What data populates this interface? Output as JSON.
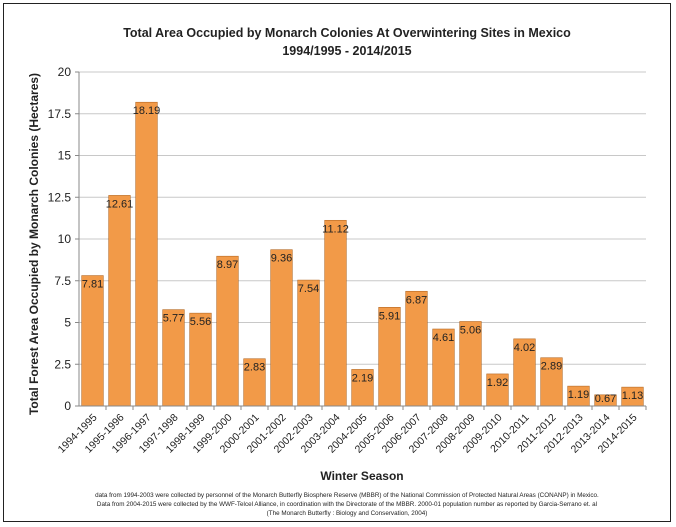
{
  "chart_data": {
    "type": "bar",
    "title": "Total Area Occupied by Monarch  Colonies At Overwintering Sites in Mexico",
    "subtitle": "1994/1995 - 2014/2015",
    "xlabel": "Winter Season",
    "ylabel": "Total Forest Area Occupied by Monarch Colonies (Hectares)",
    "ylim": [
      0,
      20
    ],
    "yticks": [
      "0",
      "2.5",
      "5",
      "7.5",
      "10",
      "12.5",
      "15",
      "17.5",
      "20"
    ],
    "grid": true,
    "bar_color": "#F29A48",
    "categories": [
      "1994-1995",
      "1995-1996",
      "1996-1997",
      "1997-1998",
      "1998-1999",
      "1999-2000",
      "2000-2001",
      "2001-2002",
      "2002-2003",
      "2003-2004",
      "2004-2005",
      "2005-2006",
      "2006-2007",
      "2007-2008",
      "2008-2009",
      "2009-2010",
      "2010-2011",
      "2011-2012",
      "2012-2013",
      "2013-2014",
      "2014-2015"
    ],
    "values": [
      7.81,
      12.61,
      18.19,
      5.77,
      5.56,
      8.97,
      2.83,
      9.36,
      7.54,
      11.12,
      2.19,
      5.91,
      6.87,
      4.61,
      5.06,
      1.92,
      4.02,
      2.89,
      1.19,
      0.67,
      1.13
    ],
    "data_labels": [
      "7.81",
      "12.61",
      "18.19",
      "5.77",
      "5.56",
      "8.97",
      "2.83",
      "9.36",
      "7.54",
      "11.12",
      "2.19",
      "5.91",
      "6.87",
      "4.61",
      "5.06",
      "1.92",
      "4.02",
      "2.89",
      "1.19",
      "0.67",
      "1.13"
    ]
  },
  "notes": [
    "data from 1994-2003 were collected by personnel of the Monarch Butterfly Biosphere Reserve (MBBR) of the National Commission of Protected Natural Areas (CONANP) in Mexico.",
    "Data from 2004-2015 were collected by the WWF-Telcel Alliance, in coordination with the Directorate of the MBBR. 2000-01 population number as reported by Garcia-Serrano et. al",
    "(The Monarch Butterfly : Biology and Conservation, 2004)"
  ]
}
